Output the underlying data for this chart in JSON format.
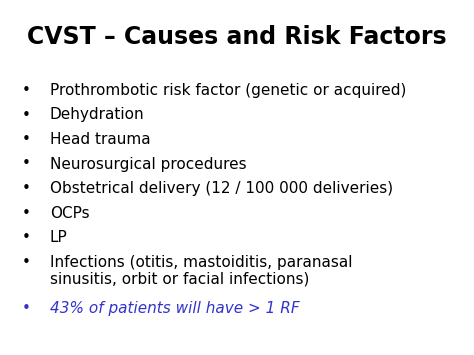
{
  "title": "CVST – Causes and Risk Factors",
  "title_color": "#000000",
  "title_fontsize": 17,
  "title_fontweight": "bold",
  "background_color": "#ffffff",
  "bullet_fontsize": 11,
  "bullet_items": [
    {
      "text": "Prothrombotic risk factor (genetic or acquired)",
      "color": "#000000",
      "style": "normal"
    },
    {
      "text": "Dehydration",
      "color": "#000000",
      "style": "normal"
    },
    {
      "text": "Head trauma",
      "color": "#000000",
      "style": "normal"
    },
    {
      "text": "Neurosurgical procedures",
      "color": "#000000",
      "style": "normal"
    },
    {
      "text": "Obstetrical delivery (12 / 100 000 deliveries)",
      "color": "#000000",
      "style": "normal"
    },
    {
      "text": "OCPs",
      "color": "#000000",
      "style": "normal"
    },
    {
      "text": "LP",
      "color": "#000000",
      "style": "normal"
    },
    {
      "text": "Infections (otitis, mastoiditis, paranasal\nsinusitis, orbit or facial infections)",
      "color": "#000000",
      "style": "normal"
    },
    {
      "text": "43% of patients will have > 1 RF",
      "color": "#3333cc",
      "style": "italic"
    }
  ]
}
